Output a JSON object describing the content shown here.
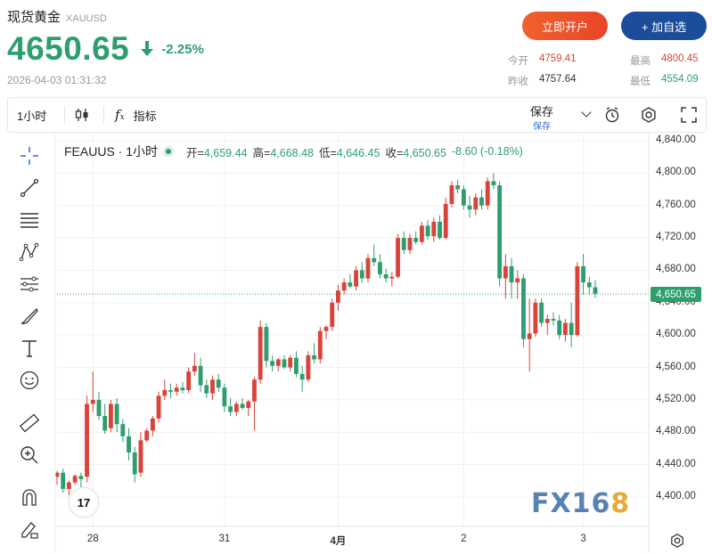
{
  "header": {
    "name": "现货黄金",
    "symbol": "XAUUSD",
    "price": "4650.65",
    "change_pct": "-2.25%",
    "timestamp": "2026-04-03 01:31:32",
    "open_account_label": "立即开户",
    "add_watch_label": "+ 加自选"
  },
  "stats": {
    "today_open_label": "今开",
    "today_open": "4759.41",
    "high_label": "最高",
    "high": "4800.45",
    "prev_close_label": "昨收",
    "prev_close": "4757.64",
    "low_label": "最低",
    "low": "4554.09"
  },
  "toolbar": {
    "interval": "1小时",
    "indicators_label": "指标",
    "save_label": "保存",
    "save_sub": "保存"
  },
  "legend": {
    "symbol": "FEAUUS · 1小时",
    "open_label": "开=",
    "open": "4,659.44",
    "high_label": "高=",
    "high": "4,668.48",
    "low_label": "低=",
    "low": "4,646.45",
    "close_label": "收=",
    "close": "4,650.65",
    "change": "-8.60 (-0.18%)"
  },
  "watermark": {
    "part1": "FX16",
    "part2": "8"
  },
  "tv_logo": "17",
  "colors": {
    "up": "#2e9e6f",
    "down": "#d9433a",
    "accent_orange": "#ee5a2a",
    "accent_blue": "#1b4d9a"
  },
  "chart_data": {
    "type": "candlestick",
    "symbol": "FEAUUS",
    "interval": "1小时",
    "y_ticks": [
      "4,840.00",
      "4,800.00",
      "4,760.00",
      "4,720.00",
      "4,680.00",
      "4,640.00",
      "4,600.00",
      "4,560.00",
      "4,520.00",
      "4,480.00",
      "4,440.00",
      "4,400.00"
    ],
    "ylim": [
      4378,
      4840
    ],
    "x_ticks": [
      "28",
      "31",
      "4月",
      "2",
      "3"
    ],
    "x_tick_index": [
      6,
      28,
      47,
      68,
      88
    ],
    "last_price": "4,650.65",
    "candles": [
      {
        "o": 4425,
        "h": 4432,
        "l": 4415,
        "c": 4430
      },
      {
        "o": 4430,
        "h": 4435,
        "l": 4405,
        "c": 4410
      },
      {
        "o": 4410,
        "h": 4420,
        "l": 4402,
        "c": 4418
      },
      {
        "o": 4418,
        "h": 4428,
        "l": 4415,
        "c": 4426
      },
      {
        "o": 4426,
        "h": 4430,
        "l": 4412,
        "c": 4422
      },
      {
        "o": 4425,
        "h": 4525,
        "l": 4418,
        "c": 4515
      },
      {
        "o": 4515,
        "h": 4555,
        "l": 4505,
        "c": 4520
      },
      {
        "o": 4520,
        "h": 4530,
        "l": 4495,
        "c": 4500
      },
      {
        "o": 4500,
        "h": 4515,
        "l": 4478,
        "c": 4482
      },
      {
        "o": 4485,
        "h": 4520,
        "l": 4480,
        "c": 4515
      },
      {
        "o": 4515,
        "h": 4522,
        "l": 4480,
        "c": 4490
      },
      {
        "o": 4490,
        "h": 4496,
        "l": 4468,
        "c": 4475
      },
      {
        "o": 4475,
        "h": 4485,
        "l": 4445,
        "c": 4455
      },
      {
        "o": 4455,
        "h": 4462,
        "l": 4418,
        "c": 4428
      },
      {
        "o": 4430,
        "h": 4480,
        "l": 4425,
        "c": 4470
      },
      {
        "o": 4470,
        "h": 4485,
        "l": 4468,
        "c": 4482
      },
      {
        "o": 4482,
        "h": 4500,
        "l": 4475,
        "c": 4497
      },
      {
        "o": 4497,
        "h": 4530,
        "l": 4492,
        "c": 4525
      },
      {
        "o": 4525,
        "h": 4545,
        "l": 4520,
        "c": 4532
      },
      {
        "o": 4532,
        "h": 4540,
        "l": 4522,
        "c": 4530
      },
      {
        "o": 4530,
        "h": 4540,
        "l": 4525,
        "c": 4535
      },
      {
        "o": 4535,
        "h": 4542,
        "l": 4528,
        "c": 4532
      },
      {
        "o": 4532,
        "h": 4560,
        "l": 4528,
        "c": 4555
      },
      {
        "o": 4555,
        "h": 4578,
        "l": 4550,
        "c": 4562
      },
      {
        "o": 4562,
        "h": 4572,
        "l": 4530,
        "c": 4538
      },
      {
        "o": 4538,
        "h": 4545,
        "l": 4522,
        "c": 4528
      },
      {
        "o": 4528,
        "h": 4550,
        "l": 4520,
        "c": 4545
      },
      {
        "o": 4545,
        "h": 4552,
        "l": 4530,
        "c": 4535
      },
      {
        "o": 4535,
        "h": 4540,
        "l": 4505,
        "c": 4512
      },
      {
        "o": 4512,
        "h": 4522,
        "l": 4500,
        "c": 4505
      },
      {
        "o": 4505,
        "h": 4518,
        "l": 4500,
        "c": 4515
      },
      {
        "o": 4515,
        "h": 4522,
        "l": 4508,
        "c": 4510
      },
      {
        "o": 4510,
        "h": 4520,
        "l": 4500,
        "c": 4518
      },
      {
        "o": 4518,
        "h": 4548,
        "l": 4482,
        "c": 4545
      },
      {
        "o": 4545,
        "h": 4618,
        "l": 4540,
        "c": 4610
      },
      {
        "o": 4610,
        "h": 4615,
        "l": 4560,
        "c": 4568
      },
      {
        "o": 4568,
        "h": 4575,
        "l": 4555,
        "c": 4562
      },
      {
        "o": 4562,
        "h": 4572,
        "l": 4555,
        "c": 4570
      },
      {
        "o": 4570,
        "h": 4575,
        "l": 4558,
        "c": 4560
      },
      {
        "o": 4560,
        "h": 4575,
        "l": 4555,
        "c": 4572
      },
      {
        "o": 4572,
        "h": 4580,
        "l": 4548,
        "c": 4552
      },
      {
        "o": 4552,
        "h": 4562,
        "l": 4530,
        "c": 4545
      },
      {
        "o": 4545,
        "h": 4580,
        "l": 4542,
        "c": 4575
      },
      {
        "o": 4575,
        "h": 4590,
        "l": 4565,
        "c": 4570
      },
      {
        "o": 4570,
        "h": 4610,
        "l": 4565,
        "c": 4605
      },
      {
        "o": 4605,
        "h": 4612,
        "l": 4595,
        "c": 4610
      },
      {
        "o": 4610,
        "h": 4645,
        "l": 4605,
        "c": 4640
      },
      {
        "o": 4640,
        "h": 4662,
        "l": 4630,
        "c": 4655
      },
      {
        "o": 4655,
        "h": 4670,
        "l": 4650,
        "c": 4665
      },
      {
        "o": 4665,
        "h": 4675,
        "l": 4658,
        "c": 4660
      },
      {
        "o": 4660,
        "h": 4685,
        "l": 4655,
        "c": 4680
      },
      {
        "o": 4680,
        "h": 4690,
        "l": 4665,
        "c": 4670
      },
      {
        "o": 4670,
        "h": 4700,
        "l": 4665,
        "c": 4695
      },
      {
        "o": 4695,
        "h": 4712,
        "l": 4685,
        "c": 4690
      },
      {
        "o": 4690,
        "h": 4700,
        "l": 4670,
        "c": 4675
      },
      {
        "o": 4675,
        "h": 4682,
        "l": 4665,
        "c": 4670
      },
      {
        "o": 4670,
        "h": 4678,
        "l": 4660,
        "c": 4672
      },
      {
        "o": 4672,
        "h": 4725,
        "l": 4670,
        "c": 4720
      },
      {
        "o": 4720,
        "h": 4728,
        "l": 4700,
        "c": 4705
      },
      {
        "o": 4705,
        "h": 4725,
        "l": 4700,
        "c": 4720
      },
      {
        "o": 4720,
        "h": 4728,
        "l": 4712,
        "c": 4715
      },
      {
        "o": 4715,
        "h": 4740,
        "l": 4712,
        "c": 4735
      },
      {
        "o": 4735,
        "h": 4742,
        "l": 4718,
        "c": 4722
      },
      {
        "o": 4722,
        "h": 4745,
        "l": 4715,
        "c": 4740
      },
      {
        "o": 4740,
        "h": 4748,
        "l": 4718,
        "c": 4720
      },
      {
        "o": 4720,
        "h": 4770,
        "l": 4718,
        "c": 4762
      },
      {
        "o": 4762,
        "h": 4790,
        "l": 4758,
        "c": 4785
      },
      {
        "o": 4785,
        "h": 4792,
        "l": 4775,
        "c": 4780
      },
      {
        "o": 4780,
        "h": 4785,
        "l": 4755,
        "c": 4760
      },
      {
        "o": 4760,
        "h": 4772,
        "l": 4745,
        "c": 4755
      },
      {
        "o": 4755,
        "h": 4775,
        "l": 4748,
        "c": 4770
      },
      {
        "o": 4770,
        "h": 4780,
        "l": 4755,
        "c": 4760
      },
      {
        "o": 4760,
        "h": 4795,
        "l": 4755,
        "c": 4790
      },
      {
        "o": 4790,
        "h": 4800,
        "l": 4780,
        "c": 4785
      },
      {
        "o": 4785,
        "h": 4790,
        "l": 4660,
        "c": 4670
      },
      {
        "o": 4670,
        "h": 4700,
        "l": 4645,
        "c": 4685
      },
      {
        "o": 4685,
        "h": 4695,
        "l": 4645,
        "c": 4665
      },
      {
        "o": 4665,
        "h": 4680,
        "l": 4645,
        "c": 4670
      },
      {
        "o": 4670,
        "h": 4675,
        "l": 4585,
        "c": 4595
      },
      {
        "o": 4595,
        "h": 4645,
        "l": 4555,
        "c": 4602
      },
      {
        "o": 4602,
        "h": 4645,
        "l": 4598,
        "c": 4640
      },
      {
        "o": 4640,
        "h": 4645,
        "l": 4610,
        "c": 4615
      },
      {
        "o": 4615,
        "h": 4625,
        "l": 4600,
        "c": 4620
      },
      {
        "o": 4620,
        "h": 4628,
        "l": 4612,
        "c": 4618
      },
      {
        "o": 4618,
        "h": 4625,
        "l": 4595,
        "c": 4600
      },
      {
        "o": 4600,
        "h": 4620,
        "l": 4592,
        "c": 4615
      },
      {
        "o": 4615,
        "h": 4640,
        "l": 4585,
        "c": 4600
      },
      {
        "o": 4600,
        "h": 4690,
        "l": 4598,
        "c": 4685
      },
      {
        "o": 4685,
        "h": 4700,
        "l": 4650,
        "c": 4665
      },
      {
        "o": 4665,
        "h": 4672,
        "l": 4650,
        "c": 4659
      },
      {
        "o": 4659,
        "h": 4668,
        "l": 4646,
        "c": 4651
      }
    ]
  }
}
